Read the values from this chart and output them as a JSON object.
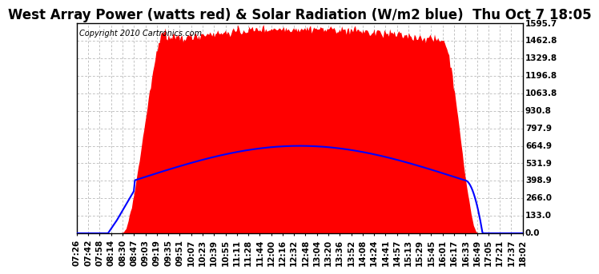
{
  "title": "West Array Power (watts red) & Solar Radiation (W/m2 blue)  Thu Oct 7 18:05",
  "copyright_text": "Copyright 2010 Cartronics.com",
  "background_color": "#ffffff",
  "plot_bg_color": "#ffffff",
  "grid_color": "#aaaaaa",
  "red_fill_color": "#ff0000",
  "blue_line_color": "#0000ff",
  "y_max": 1595.7,
  "y_min": 0.0,
  "y_ticks": [
    0.0,
    133.0,
    266.0,
    398.9,
    531.9,
    664.9,
    797.9,
    930.8,
    1063.8,
    1196.8,
    1329.8,
    1462.8,
    1595.7
  ],
  "x_tick_labels": [
    "07:26",
    "07:42",
    "07:58",
    "08:14",
    "08:30",
    "08:47",
    "09:03",
    "09:19",
    "09:35",
    "09:51",
    "10:07",
    "10:23",
    "10:39",
    "10:55",
    "11:11",
    "11:28",
    "11:44",
    "12:00",
    "12:16",
    "12:32",
    "12:48",
    "13:04",
    "13:20",
    "13:36",
    "13:52",
    "14:08",
    "14:24",
    "14:41",
    "14:57",
    "15:13",
    "15:29",
    "15:45",
    "16:01",
    "16:17",
    "16:33",
    "16:49",
    "17:05",
    "17:21",
    "17:37",
    "18:02"
  ],
  "title_fontsize": 12,
  "tick_fontsize": 7.5,
  "copyright_fontsize": 7,
  "power_peak": 1560.0,
  "solar_peak": 664.9
}
